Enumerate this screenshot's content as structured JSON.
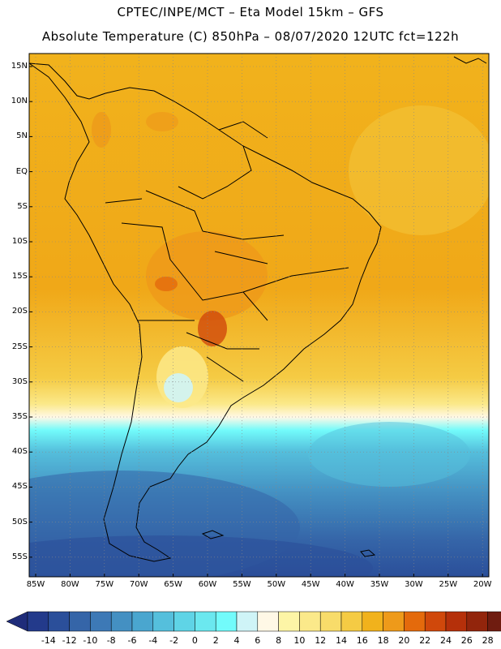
{
  "header": {
    "line1": "CPTEC/INPE/MCT –  Eta Model 15km – GFS",
    "line2": "Absolute Temperature (C) 850hPa – 08/07/2020 12UTC fct=122h"
  },
  "axes": {
    "lat_labels": [
      "15N",
      "10N",
      "5N",
      "EQ",
      "5S",
      "10S",
      "15S",
      "20S",
      "25S",
      "30S",
      "35S",
      "40S",
      "45S",
      "50S",
      "55S"
    ],
    "lon_labels": [
      "85W",
      "80W",
      "75W",
      "70W",
      "65W",
      "60W",
      "55W",
      "50W",
      "45W",
      "40W",
      "35W",
      "30W",
      "25W",
      "20W"
    ]
  },
  "colorbar": {
    "ticks": [
      "-14",
      "-12",
      "-10",
      "-8",
      "-6",
      "-4",
      "-2",
      "0",
      "2",
      "4",
      "6",
      "8",
      "10",
      "12",
      "14",
      "16",
      "18",
      "20",
      "22",
      "24",
      "26",
      "28"
    ],
    "colors": [
      "#233a8b",
      "#2b4f9a",
      "#3565a8",
      "#3d79b6",
      "#4490c2",
      "#4aa6cf",
      "#55bfdc",
      "#5fd4e6",
      "#6be8ef",
      "#72fbfb",
      "#cff4f7",
      "#fff8e6",
      "#fdf5a6",
      "#fbe98a",
      "#f8dc6a",
      "#f5cb44",
      "#f1b21c",
      "#ee9a1a",
      "#e46a0c",
      "#d0480b",
      "#b5300a",
      "#92250c",
      "#6f1c10"
    ],
    "under_color": "#1f2c7a",
    "over_color": "#6b0c2a"
  }
}
